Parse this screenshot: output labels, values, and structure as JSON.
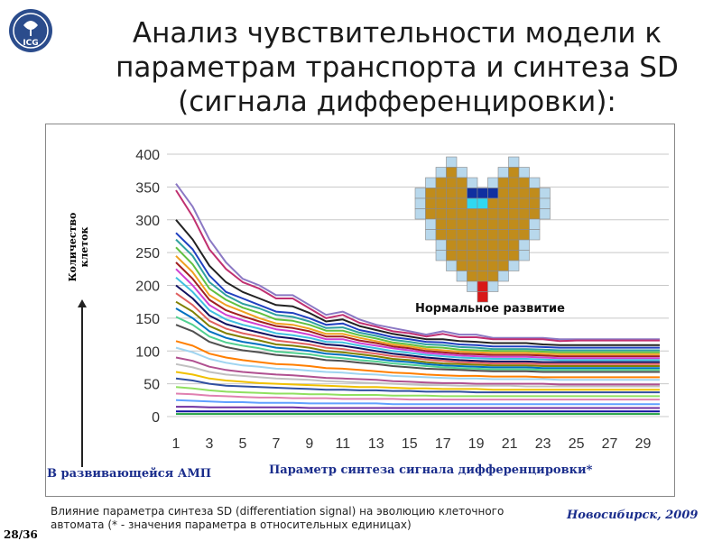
{
  "slide": {
    "title_lines": [
      "Анализ чувствительности модели к",
      "параметрам транспорта и синтеза SD",
      "(сигнала дифференцировки):"
    ],
    "logo": {
      "icon": "institute-emblem-icon",
      "text": "ICG",
      "color": "#2b4c8c"
    },
    "ylabel": "Количество клеток",
    "caption_left": "В развивающейся АМП",
    "caption_x": "Параметр синтеза сигнала дифференцировки*",
    "normal_label": "Нормальное развитие",
    "footnote": "Влияние параметра синтеза SD (differentiation signal) на эволюцию клеточного автомата (* - значения параметра в относительных единицах)",
    "place_date": "Новосибирск, 2009",
    "page": "28/36",
    "caption_color": "#1a2d8c"
  },
  "chart_data": {
    "type": "line",
    "x": [
      1,
      2,
      3,
      4,
      5,
      6,
      7,
      8,
      9,
      10,
      11,
      12,
      13,
      14,
      15,
      16,
      17,
      18,
      19,
      20,
      21,
      22,
      23,
      24,
      25,
      26,
      27,
      28,
      29,
      30
    ],
    "x_ticks": [
      1,
      3,
      5,
      7,
      9,
      11,
      13,
      15,
      17,
      19,
      21,
      23,
      25,
      27,
      29
    ],
    "y_ticks": [
      0,
      50,
      100,
      150,
      200,
      250,
      300,
      350,
      400
    ],
    "ylim": [
      0,
      400
    ],
    "xlabel": "Параметр синтеза сигнала дифференцировки*",
    "ylabel": "Количество клеток",
    "grid": "horizontal",
    "series": [
      {
        "color": "#8b78c4",
        "values": [
          355,
          320,
          270,
          235,
          210,
          200,
          185,
          185,
          170,
          155,
          160,
          148,
          140,
          135,
          130,
          125,
          130,
          125,
          125,
          120,
          120,
          120,
          120,
          118,
          118,
          118,
          118,
          118,
          118,
          118
        ]
      },
      {
        "color": "#c03070",
        "values": [
          345,
          305,
          255,
          225,
          205,
          195,
          180,
          180,
          165,
          150,
          155,
          143,
          137,
          130,
          127,
          122,
          126,
          121,
          121,
          118,
          118,
          118,
          118,
          115,
          116,
          116,
          116,
          116,
          116,
          116
        ]
      },
      {
        "color": "#222222",
        "values": [
          300,
          270,
          230,
          205,
          190,
          180,
          170,
          168,
          158,
          145,
          148,
          138,
          132,
          126,
          122,
          118,
          118,
          115,
          114,
          112,
          112,
          112,
          110,
          109,
          109,
          109,
          109,
          109,
          109,
          109
        ]
      },
      {
        "color": "#2040c0",
        "values": [
          280,
          255,
          215,
          190,
          180,
          170,
          160,
          158,
          150,
          140,
          142,
          132,
          127,
          121,
          118,
          114,
          113,
          110,
          109,
          107,
          107,
          107,
          106,
          105,
          105,
          105,
          105,
          105,
          105,
          105
        ]
      },
      {
        "color": "#30a0a0",
        "values": [
          270,
          245,
          205,
          185,
          172,
          165,
          155,
          152,
          145,
          135,
          136,
          128,
          123,
          117,
          114,
          110,
          109,
          106,
          105,
          103,
          103,
          103,
          102,
          101,
          101,
          101,
          101,
          101,
          101,
          101
        ]
      },
      {
        "color": "#60c040",
        "values": [
          258,
          232,
          195,
          178,
          166,
          158,
          148,
          146,
          140,
          131,
          131,
          124,
          119,
          113,
          110,
          106,
          105,
          102,
          101,
          100,
          100,
          100,
          99,
          98,
          98,
          98,
          98,
          98,
          98,
          98
        ]
      },
      {
        "color": "#f0a020",
        "values": [
          245,
          220,
          185,
          170,
          160,
          150,
          142,
          140,
          134,
          126,
          126,
          120,
          115,
          110,
          107,
          103,
          101,
          99,
          98,
          97,
          97,
          97,
          96,
          95,
          95,
          95,
          95,
          95,
          95,
          95
        ]
      },
      {
        "color": "#a02020",
        "values": [
          235,
          210,
          178,
          162,
          153,
          145,
          138,
          135,
          130,
          122,
          122,
          116,
          112,
          107,
          104,
          100,
          98,
          96,
          95,
          94,
          94,
          94,
          93,
          92,
          92,
          92,
          92,
          92,
          92,
          92
        ]
      },
      {
        "color": "#d040d0",
        "values": [
          225,
          200,
          170,
          155,
          147,
          140,
          133,
          130,
          125,
          118,
          118,
          112,
          108,
          104,
          101,
          97,
          95,
          93,
          92,
          91,
          91,
          91,
          90,
          89,
          89,
          89,
          89,
          89,
          89,
          89
        ]
      },
      {
        "color": "#40c0e0",
        "values": [
          212,
          190,
          162,
          148,
          140,
          134,
          127,
          124,
          120,
          114,
          113,
          108,
          104,
          100,
          97,
          94,
          92,
          90,
          89,
          88,
          88,
          88,
          87,
          86,
          86,
          86,
          86,
          86,
          86,
          86
        ]
      },
      {
        "color": "#101060",
        "values": [
          200,
          180,
          154,
          141,
          134,
          128,
          122,
          119,
          115,
          110,
          108,
          104,
          100,
          96,
          93,
          90,
          88,
          86,
          85,
          84,
          84,
          84,
          83,
          83,
          83,
          83,
          83,
          83,
          83,
          83
        ]
      },
      {
        "color": "#e06060",
        "values": [
          188,
          170,
          146,
          134,
          127,
          122,
          116,
          113,
          110,
          105,
          103,
          99,
          96,
          92,
          90,
          87,
          85,
          83,
          82,
          81,
          81,
          81,
          80,
          80,
          80,
          80,
          80,
          80,
          80,
          80
        ]
      },
      {
        "color": "#808000",
        "values": [
          175,
          160,
          138,
          127,
          121,
          116,
          110,
          108,
          105,
          100,
          98,
          95,
          92,
          88,
          86,
          83,
          81,
          80,
          79,
          78,
          78,
          78,
          77,
          77,
          77,
          77,
          77,
          77,
          77,
          77
        ]
      },
      {
        "color": "#0070c0",
        "values": [
          165,
          150,
          130,
          120,
          114,
          110,
          105,
          103,
          100,
          96,
          94,
          91,
          88,
          85,
          83,
          80,
          78,
          77,
          76,
          75,
          75,
          75,
          74,
          74,
          74,
          74,
          74,
          74,
          74,
          74
        ]
      },
      {
        "color": "#50d090",
        "values": [
          152,
          140,
          122,
          113,
          108,
          104,
          99,
          97,
          95,
          91,
          89,
          86,
          84,
          81,
          79,
          77,
          75,
          74,
          73,
          72,
          72,
          72,
          71,
          71,
          71,
          71,
          71,
          71,
          71,
          71
        ]
      },
      {
        "color": "#505050",
        "values": [
          140,
          130,
          114,
          106,
          101,
          98,
          94,
          92,
          90,
          86,
          85,
          82,
          80,
          77,
          75,
          73,
          72,
          71,
          70,
          69,
          69,
          69,
          68,
          68,
          68,
          68,
          68,
          68,
          68,
          68
        ]
      },
      {
        "color": "#ff7f00",
        "values": [
          115,
          108,
          96,
          90,
          86,
          83,
          80,
          79,
          77,
          74,
          73,
          71,
          69,
          67,
          66,
          64,
          63,
          62,
          62,
          61,
          61,
          61,
          60,
          60,
          60,
          60,
          60,
          60,
          60,
          60
        ]
      },
      {
        "color": "#9fd4f0",
        "values": [
          105,
          98,
          88,
          82,
          78,
          76,
          73,
          72,
          70,
          68,
          67,
          65,
          64,
          62,
          61,
          60,
          59,
          58,
          58,
          57,
          57,
          57,
          57,
          56,
          56,
          56,
          56,
          56,
          56,
          56
        ]
      },
      {
        "color": "#b05090",
        "values": [
          90,
          85,
          76,
          71,
          68,
          66,
          64,
          63,
          61,
          59,
          58,
          57,
          56,
          54,
          53,
          52,
          51,
          51,
          50,
          50,
          50,
          50,
          50,
          49,
          49,
          49,
          49,
          49,
          49,
          49
        ]
      },
      {
        "color": "#c0c0c0",
        "values": [
          80,
          75,
          68,
          64,
          62,
          60,
          58,
          57,
          56,
          54,
          53,
          52,
          51,
          50,
          49,
          48,
          48,
          47,
          47,
          47,
          47,
          46,
          46,
          46,
          46,
          46,
          46,
          46,
          46,
          46
        ]
      },
      {
        "color": "#f0c000",
        "values": [
          68,
          64,
          58,
          55,
          53,
          51,
          50,
          49,
          48,
          47,
          46,
          45,
          45,
          44,
          43,
          43,
          42,
          42,
          42,
          41,
          41,
          41,
          41,
          41,
          41,
          41,
          41,
          41,
          41,
          41
        ]
      },
      {
        "color": "#3050a0",
        "values": [
          58,
          55,
          50,
          47,
          46,
          45,
          44,
          43,
          42,
          41,
          41,
          40,
          40,
          39,
          39,
          38,
          38,
          38,
          37,
          37,
          37,
          37,
          37,
          37,
          37,
          37,
          37,
          37,
          37,
          37
        ]
      },
      {
        "color": "#90e060",
        "values": [
          45,
          43,
          40,
          38,
          37,
          36,
          35,
          35,
          34,
          34,
          33,
          33,
          33,
          32,
          32,
          32,
          31,
          31,
          31,
          31,
          31,
          31,
          31,
          31,
          31,
          31,
          31,
          31,
          31,
          31
        ]
      },
      {
        "color": "#e080b0",
        "values": [
          35,
          34,
          32,
          31,
          30,
          29,
          29,
          28,
          28,
          28,
          27,
          27,
          27,
          27,
          26,
          26,
          26,
          26,
          26,
          26,
          26,
          26,
          26,
          26,
          26,
          26,
          26,
          26,
          26,
          26
        ]
      },
      {
        "color": "#60a0ff",
        "values": [
          25,
          24,
          23,
          22,
          22,
          21,
          21,
          21,
          20,
          20,
          20,
          20,
          20,
          19,
          19,
          19,
          19,
          19,
          19,
          19,
          19,
          19,
          19,
          19,
          19,
          19,
          19,
          19,
          19,
          19
        ]
      },
      {
        "color": "#7030a0",
        "values": [
          15,
          15,
          14,
          14,
          14,
          14,
          14,
          14,
          13,
          13,
          13,
          13,
          13,
          13,
          13,
          13,
          13,
          13,
          13,
          13,
          13,
          13,
          13,
          13,
          13,
          13,
          13,
          13,
          13,
          13
        ]
      },
      {
        "color": "#1010a0",
        "values": [
          8,
          8,
          8,
          8,
          8,
          8,
          8,
          8,
          8,
          8,
          8,
          8,
          8,
          8,
          8,
          8,
          8,
          8,
          8,
          8,
          8,
          8,
          8,
          8,
          8,
          8,
          8,
          8,
          8,
          8
        ]
      },
      {
        "color": "#20a040",
        "values": [
          4,
          4,
          4,
          4,
          4,
          4,
          4,
          4,
          4,
          4,
          4,
          4,
          4,
          4,
          4,
          4,
          4,
          4,
          4,
          4,
          4,
          4,
          4,
          4,
          4,
          4,
          4,
          4,
          4,
          4
        ]
      }
    ]
  },
  "heart_grid": {
    "legend_colors": {
      "L": "#b8d8ec",
      "B": "#c08c1c",
      "D": "#1030a0",
      "T": "#2a8a80",
      "C": "#30d8f0",
      "R": "#d81818"
    },
    "rows": [
      "...L.....L...",
      "..LBL...LBL..",
      ".LBBBL.LBBBL.",
      "LBBBBDDDBBBBL",
      "LBBBBCCBBBBBL",
      "LBBBBBBBBBBBL",
      ".LBBBBBBBBBL.",
      ".LBBBBBBBBBL.",
      "..LBBBBBBBL..",
      "..LBBBBBBBL..",
      "...LBBBBBL...",
      "....LBBBL....",
      ".....LRL.....",
      "......R......"
    ]
  }
}
